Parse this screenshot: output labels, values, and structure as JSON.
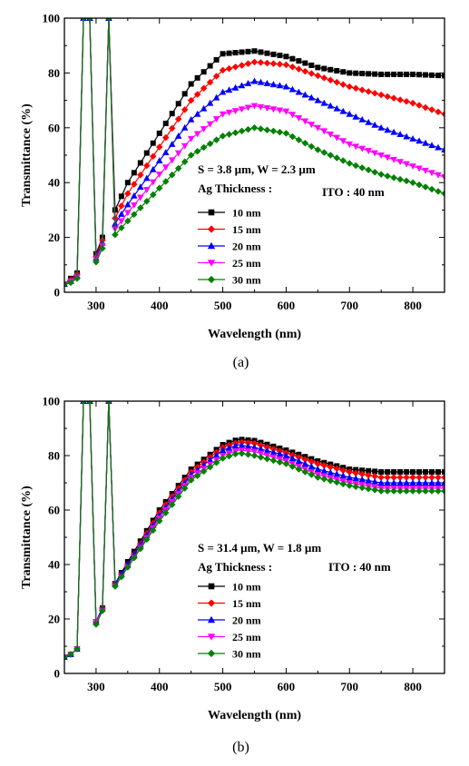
{
  "chart_data": [
    {
      "panel_label": "(a)",
      "type": "line",
      "xlabel": "Wavelength (nm)",
      "ylabel": "Transmittance (%)",
      "xlim": [
        250,
        850
      ],
      "ylim": [
        0,
        100
      ],
      "xticks": [
        300,
        400,
        500,
        600,
        700,
        800
      ],
      "yticks": [
        0,
        20,
        40,
        60,
        80,
        100
      ],
      "annotation_params": "S = 3.8 µm, W = 2.3 µm",
      "annotation_ito": "ITO : 40 nm",
      "legend_title": "Ag Thickness :",
      "legend_position": "lower-left",
      "series": [
        {
          "name": "10 nm",
          "color": "#000000",
          "marker": "square",
          "x": [
            250,
            260,
            270,
            280,
            290,
            300,
            310,
            320,
            330,
            350,
            400,
            450,
            500,
            550,
            600,
            650,
            700,
            750,
            800,
            850
          ],
          "y": [
            3,
            5,
            7,
            100,
            100,
            14,
            20,
            100,
            30,
            40,
            58,
            76,
            87,
            88,
            86,
            82,
            80,
            79.5,
            79.5,
            79
          ]
        },
        {
          "name": "15 nm",
          "color": "#ff0000",
          "marker": "diamond",
          "x": [
            250,
            260,
            270,
            280,
            290,
            300,
            310,
            320,
            330,
            350,
            400,
            450,
            500,
            550,
            600,
            650,
            700,
            750,
            800,
            850
          ],
          "y": [
            3,
            4.5,
            6.5,
            100,
            100,
            13,
            19,
            100,
            27,
            36,
            53,
            70,
            81,
            84,
            83,
            79,
            75,
            72,
            69,
            65
          ]
        },
        {
          "name": "20 nm",
          "color": "#0000ff",
          "marker": "triangle-up",
          "x": [
            250,
            260,
            270,
            280,
            290,
            300,
            310,
            320,
            330,
            350,
            400,
            450,
            500,
            550,
            600,
            650,
            700,
            750,
            800,
            850
          ],
          "y": [
            3,
            4,
            6,
            100,
            100,
            12.5,
            18,
            100,
            25,
            32,
            48,
            63,
            73,
            77,
            75,
            70,
            65,
            60,
            56,
            52
          ]
        },
        {
          "name": "25 nm",
          "color": "#ff00ff",
          "marker": "triangle-down",
          "x": [
            250,
            260,
            270,
            280,
            290,
            300,
            310,
            320,
            330,
            350,
            400,
            450,
            500,
            550,
            600,
            650,
            700,
            750,
            800,
            850
          ],
          "y": [
            3,
            4,
            5.5,
            100,
            100,
            12,
            17,
            100,
            23,
            29,
            43,
            56,
            65,
            68,
            66,
            60,
            54,
            50,
            46,
            42
          ]
        },
        {
          "name": "30 nm",
          "color": "#008000",
          "marker": "diamond",
          "x": [
            250,
            260,
            270,
            280,
            290,
            300,
            310,
            320,
            330,
            350,
            400,
            450,
            500,
            550,
            600,
            650,
            700,
            750,
            800,
            850
          ],
          "y": [
            3,
            3.5,
            5,
            100,
            100,
            11,
            16,
            100,
            21,
            26,
            38,
            50,
            57,
            60,
            58,
            52,
            47,
            43,
            40,
            36
          ]
        }
      ]
    },
    {
      "panel_label": "(b)",
      "type": "line",
      "xlabel": "Wavelength (nm)",
      "ylabel": "Transmittance (%)",
      "xlim": [
        250,
        850
      ],
      "ylim": [
        0,
        100
      ],
      "xticks": [
        300,
        400,
        500,
        600,
        700,
        800
      ],
      "yticks": [
        0,
        20,
        40,
        60,
        80,
        100
      ],
      "annotation_params": "S = 31.4 µm, W = 1.8 µm",
      "annotation_ito": "ITO : 40 nm",
      "legend_title": "Ag Thickness :",
      "legend_position": "lower-left",
      "series": [
        {
          "name": "10 nm",
          "color": "#000000",
          "marker": "square",
          "x": [
            250,
            260,
            270,
            280,
            290,
            300,
            310,
            320,
            330,
            350,
            400,
            450,
            500,
            525,
            550,
            600,
            650,
            700,
            750,
            800,
            850
          ],
          "y": [
            6,
            7,
            9,
            100,
            100,
            19,
            24,
            100,
            33,
            41,
            60,
            75,
            84,
            86,
            85.5,
            82,
            78,
            75,
            74,
            74,
            74
          ]
        },
        {
          "name": "15 nm",
          "color": "#ff0000",
          "marker": "diamond",
          "x": [
            250,
            260,
            270,
            280,
            290,
            300,
            310,
            320,
            330,
            350,
            400,
            450,
            500,
            525,
            550,
            600,
            650,
            700,
            750,
            800,
            850
          ],
          "y": [
            6,
            7,
            9,
            100,
            100,
            19,
            24,
            100,
            33,
            40,
            59,
            74,
            83,
            85,
            84.5,
            81,
            77,
            74,
            72,
            72,
            72
          ]
        },
        {
          "name": "20 nm",
          "color": "#0000ff",
          "marker": "triangle-up",
          "x": [
            250,
            260,
            270,
            280,
            290,
            300,
            310,
            320,
            330,
            350,
            400,
            450,
            500,
            525,
            550,
            600,
            650,
            700,
            750,
            800,
            850
          ],
          "y": [
            6,
            7,
            9,
            100,
            100,
            19,
            24,
            100,
            33,
            40,
            58,
            73,
            82,
            84,
            83,
            80,
            75,
            72,
            70,
            70,
            70
          ]
        },
        {
          "name": "25 nm",
          "color": "#ff00ff",
          "marker": "triangle-down",
          "x": [
            250,
            260,
            270,
            280,
            290,
            300,
            310,
            320,
            330,
            350,
            400,
            450,
            500,
            525,
            550,
            600,
            650,
            700,
            750,
            800,
            850
          ],
          "y": [
            6,
            7,
            9,
            100,
            100,
            19,
            23,
            100,
            32,
            39,
            57,
            72,
            80,
            82,
            81.5,
            78,
            73,
            70,
            68,
            68,
            68
          ]
        },
        {
          "name": "30 nm",
          "color": "#008000",
          "marker": "diamond",
          "x": [
            250,
            260,
            270,
            280,
            290,
            300,
            310,
            320,
            330,
            350,
            400,
            450,
            500,
            525,
            550,
            600,
            650,
            700,
            750,
            800,
            850
          ],
          "y": [
            6,
            7,
            9,
            100,
            100,
            18,
            23,
            100,
            32,
            39,
            56,
            71,
            79,
            81,
            80,
            77,
            72,
            69,
            67,
            67,
            67
          ]
        }
      ]
    }
  ]
}
